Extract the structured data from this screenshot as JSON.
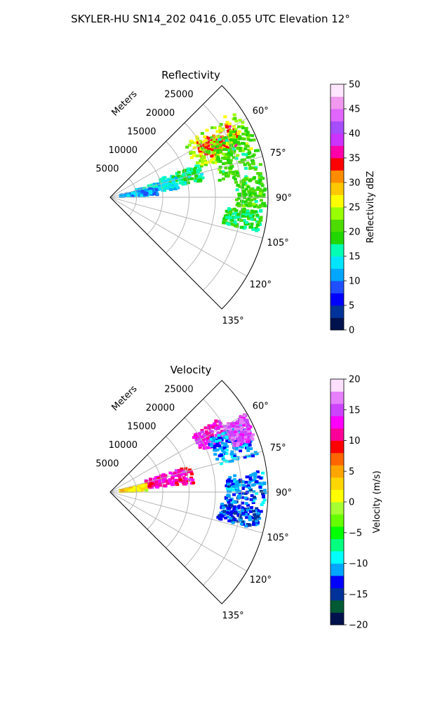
{
  "figure_title": "SKYLER-HU  SN14_202  0416_0.055 UTC Elevation 12°",
  "colors": {
    "reflectivity_scale": [
      "#00124d",
      "#003399",
      "#0000ff",
      "#1f4fff",
      "#00a6ff",
      "#00e5ff",
      "#00ffb3",
      "#22d600",
      "#4cdc00",
      "#99ff00",
      "#ffff00",
      "#ffc800",
      "#ff8c00",
      "#ff0000",
      "#ff00aa",
      "#cc33ff",
      "#a64dff",
      "#e066ff",
      "#f099ee",
      "#ffe6ff"
    ],
    "velocity_scale": [
      "#00124d",
      "#005a33",
      "#003399",
      "#0000ff",
      "#00a6ff",
      "#00ffff",
      "#00ff7f",
      "#00ff00",
      "#66ff00",
      "#a6ff33",
      "#ffff00",
      "#ffd700",
      "#ffa500",
      "#ff6600",
      "#ff0000",
      "#ff0099",
      "#ff00ff",
      "#cc44ff",
      "#e680ff",
      "#ffe0ff"
    ],
    "grid": "#b0b0b0"
  },
  "chart_data": [
    {
      "type": "heatmap",
      "projection": "polar-sector",
      "title": "Reflectivity",
      "radial_label": "Meters",
      "radial_ticks": [
        5000,
        10000,
        15000,
        20000,
        25000
      ],
      "radial_tick_labels": [
        "5000",
        "10000",
        "15000",
        "20000",
        "25000"
      ],
      "angle_ticks": [
        60,
        75,
        90,
        105,
        120,
        135
      ],
      "angle_tick_labels": [
        "60°",
        "75°",
        "90°",
        "105°",
        "120°",
        "135°"
      ],
      "azimuth_range": [
        45,
        135
      ],
      "range_max": 30000,
      "grid": true,
      "colorbar": {
        "label": "Reflectivity dBZ",
        "range": [
          0,
          50
        ],
        "ticks": [
          "0",
          "5",
          "10",
          "15",
          "20",
          "25",
          "30",
          "35",
          "40",
          "45",
          "50"
        ]
      },
      "echo_regions": [
        {
          "azimuth": [
            58,
            68
          ],
          "range": [
            19000,
            27000
          ],
          "value": 33
        },
        {
          "azimuth": [
            55,
            72
          ],
          "range": [
            17000,
            29000
          ],
          "value": 24
        },
        {
          "azimuth": [
            62,
            82
          ],
          "range": [
            21000,
            29500
          ],
          "value": 20
        },
        {
          "azimuth": [
            70,
            80
          ],
          "range": [
            10000,
            18000
          ],
          "value": 17
        },
        {
          "azimuth": [
            73,
            83
          ],
          "range": [
            5000,
            13000
          ],
          "value": 14
        },
        {
          "azimuth": [
            78,
            87
          ],
          "range": [
            2000,
            9000
          ],
          "value": 11
        },
        {
          "azimuth": [
            82,
            94
          ],
          "range": [
            24000,
            29500
          ],
          "value": 20
        },
        {
          "azimuth": [
            95,
            103
          ],
          "range": [
            22000,
            29000
          ],
          "value": 18
        }
      ]
    },
    {
      "type": "heatmap",
      "projection": "polar-sector",
      "title": "Velocity",
      "radial_label": "Meters",
      "radial_ticks": [
        5000,
        10000,
        15000,
        20000,
        25000
      ],
      "radial_tick_labels": [
        "5000",
        "10000",
        "15000",
        "20000",
        "25000"
      ],
      "angle_ticks": [
        60,
        75,
        90,
        105,
        120,
        135
      ],
      "angle_tick_labels": [
        "60°",
        "75°",
        "90°",
        "105°",
        "120°",
        "135°"
      ],
      "azimuth_range": [
        45,
        135
      ],
      "range_max": 30000,
      "grid": true,
      "colorbar": {
        "label": "Velocity (m/s)",
        "range": [
          -20,
          20
        ],
        "ticks": [
          "−20",
          "−15",
          "−10",
          "−5",
          "0",
          "5",
          "10",
          "15",
          "20"
        ]
      },
      "echo_regions": [
        {
          "azimuth": [
            56,
            66
          ],
          "range": [
            19000,
            25000
          ],
          "value": 13
        },
        {
          "azimuth": [
            62,
            76
          ],
          "range": [
            21000,
            29000
          ],
          "value": -11
        },
        {
          "azimuth": [
            60,
            70
          ],
          "range": [
            25000,
            29500
          ],
          "value": 15
        },
        {
          "azimuth": [
            72,
            84
          ],
          "range": [
            7000,
            16000
          ],
          "value": 12
        },
        {
          "azimuth": [
            78,
            88
          ],
          "range": [
            2000,
            7000
          ],
          "value": 2
        },
        {
          "azimuth": [
            82,
            96
          ],
          "range": [
            22000,
            29500
          ],
          "value": -12
        },
        {
          "azimuth": [
            96,
            104
          ],
          "range": [
            21000,
            29000
          ],
          "value": -13
        }
      ]
    }
  ]
}
